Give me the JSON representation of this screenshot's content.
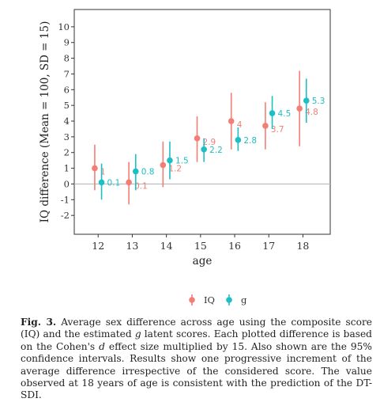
{
  "chart_data": {
    "type": "scatter",
    "xlabel": "age",
    "ylabel": "IQ difference (Mean = 100, SD = 15)",
    "xlim": [
      11.3,
      18.8
    ],
    "ylim": [
      -3.2,
      11.1
    ],
    "x_ticks": [
      "12",
      "13",
      "14",
      "15",
      "16",
      "17",
      "18"
    ],
    "y_ticks": [
      "10",
      "9",
      "8",
      "7",
      "6",
      "5",
      "4",
      "3",
      "2",
      "1",
      "0",
      "-1",
      "-2"
    ],
    "reference_line": 0,
    "grid": false,
    "legend": {
      "position": "bottom",
      "labels": [
        "IQ",
        "g"
      ]
    },
    "series": [
      {
        "name": "IQ",
        "color": "#f27e76",
        "x_offset": -0.1,
        "points": [
          {
            "x": 12,
            "y": 1.0,
            "lo": -0.4,
            "hi": 2.5,
            "label": "1"
          },
          {
            "x": 13,
            "y": 0.1,
            "lo": -1.3,
            "hi": 1.4,
            "label": "0.1"
          },
          {
            "x": 14,
            "y": 1.2,
            "lo": -0.2,
            "hi": 2.7,
            "label": "1.2"
          },
          {
            "x": 15,
            "y": 2.9,
            "lo": 1.4,
            "hi": 4.3,
            "label": "2.9"
          },
          {
            "x": 16,
            "y": 4.0,
            "lo": 2.2,
            "hi": 5.8,
            "label": "4"
          },
          {
            "x": 17,
            "y": 3.7,
            "lo": 2.2,
            "hi": 5.2,
            "label": "3.7"
          },
          {
            "x": 18,
            "y": 4.8,
            "lo": 2.4,
            "hi": 7.2,
            "label": "4.8"
          }
        ]
      },
      {
        "name": "g",
        "color": "#1ebfc4",
        "x_offset": 0.1,
        "points": [
          {
            "x": 12,
            "y": 0.1,
            "lo": -1.0,
            "hi": 1.3,
            "label": "0.1"
          },
          {
            "x": 13,
            "y": 0.8,
            "lo": -0.4,
            "hi": 1.9,
            "label": "0.8"
          },
          {
            "x": 14,
            "y": 1.5,
            "lo": 0.3,
            "hi": 2.7,
            "label": "1.5"
          },
          {
            "x": 15,
            "y": 2.2,
            "lo": 1.4,
            "hi": 2.9,
            "label": "2.2"
          },
          {
            "x": 16,
            "y": 2.8,
            "lo": 2.1,
            "hi": 3.6,
            "label": "2.8"
          },
          {
            "x": 17,
            "y": 4.5,
            "lo": 3.5,
            "hi": 5.6,
            "label": "4.5"
          },
          {
            "x": 18,
            "y": 5.3,
            "lo": 3.9,
            "hi": 6.7,
            "label": "5.3"
          }
        ]
      }
    ]
  },
  "caption": {
    "fig_label": "Fig. 3.",
    "part1": " Average sex difference across age using the composite score (IQ) and the estimated ",
    "g": "g",
    "part2": " latent scores. Each plotted difference is based on the Cohen's ",
    "d": "d",
    "part3": " effect size multiplied by 15. Also shown are the 95% confidence intervals. Results show one progressive increment of the average difference irrespective of the considered score. The value observed at 18 years of age is consistent with the prediction of the DT-SDI."
  }
}
